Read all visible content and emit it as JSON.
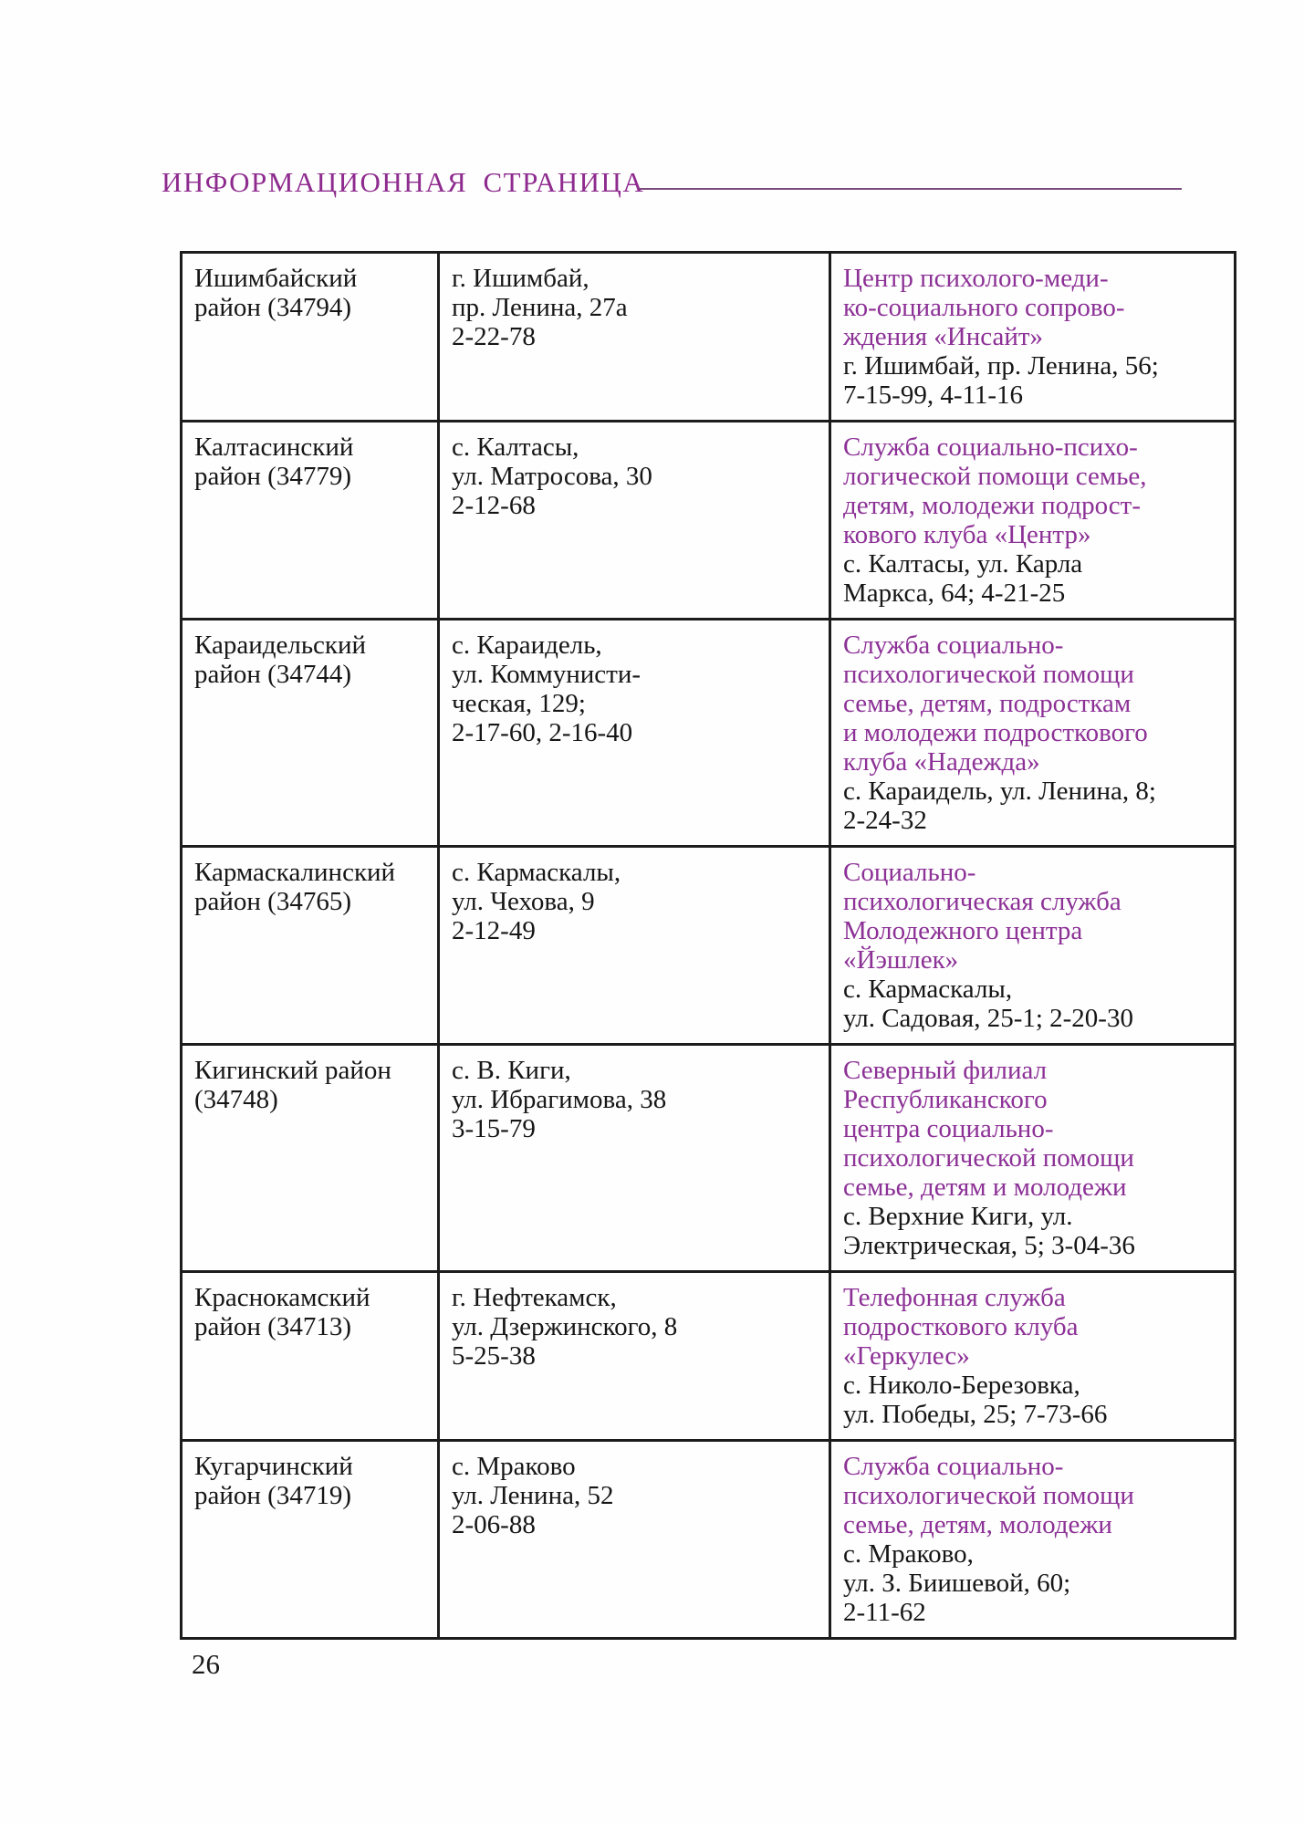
{
  "header": {
    "title": "ИНФОРМАЦИОННАЯ СТРАНИЦА"
  },
  "footer": {
    "page_number": "26"
  },
  "colors": {
    "title_purple": "#8e2b8e",
    "service_purple": "#8c3196",
    "text_black": "#161616",
    "table_border": "#1c1c1c"
  },
  "table": {
    "rows": [
      {
        "district": "Ишимбайский\nрайон (34794)",
        "address": "г. Ишимбай,\nпр. Ленина, 27а\n2-22-78",
        "service": "Центр психолого-меди-\nко-социального сопрово-\nждения «Инсайт»",
        "contact": "г. Ишимбай, пр. Ленина, 56;\n7-15-99, 4-11-16"
      },
      {
        "district": "Калтасинский\nрайон (34779)",
        "address": "с. Калтасы,\nул. Матросова, 30\n2-12-68",
        "service": "Служба социально-психо-\nлогической помощи семье,\nдетям, молодежи подрост-\nкового клуба «Центр»",
        "contact": "с. Калтасы, ул. Карла\nМаркса, 64; 4-21-25"
      },
      {
        "district": "Караидельский\nрайон (34744)",
        "address": "с. Караидель,\nул. Коммунисти-\nческая, 129;\n2-17-60, 2-16-40",
        "service": "Служба социально-\nпсихологической помощи\nсемье, детям, подросткам\nи молодежи подросткового\nклуба «Надежда»",
        "contact": "с. Караидель, ул. Ленина, 8;\n2-24-32"
      },
      {
        "district": "Кармаскалинский\nрайон (34765)",
        "address": "с. Кармаскалы,\nул. Чехова, 9\n2-12-49",
        "service": "Социально-\nпсихологическая служба\nМолодежного центра\n«Йэшлек»",
        "contact": "с. Кармаскалы,\nул. Садовая, 25-1; 2-20-30"
      },
      {
        "district": "Кигинский район\n(34748)",
        "address": "с. В. Киги,\nул. Ибрагимова, 38\n3-15-79",
        "service": "Северный филиал\nРеспубликанского\nцентра социально-\nпсихологической помощи\nсемье, детям и молодежи",
        "contact": "с. Верхние Киги, ул.\nЭлектрическая, 5; 3-04-36"
      },
      {
        "district": "Краснокамский\nрайон (34713)",
        "address": "г. Нефтекамск,\nул. Дзержинского, 8\n5-25-38",
        "service": "Телефонная служба\nподросткового клуба\n«Геркулес»",
        "contact": "с. Николо-Березовка,\nул. Победы, 25; 7-73-66"
      },
      {
        "district": "Кугарчинский\nрайон (34719)",
        "address": "с. Мраково\nул. Ленина, 52\n2-06-88",
        "service": "Служба социально-\nпсихологической помощи\nсемье, детям, молодежи",
        "contact": "с. Мраково,\nул. З. Биишевой, 60;\n2-11-62"
      }
    ]
  }
}
